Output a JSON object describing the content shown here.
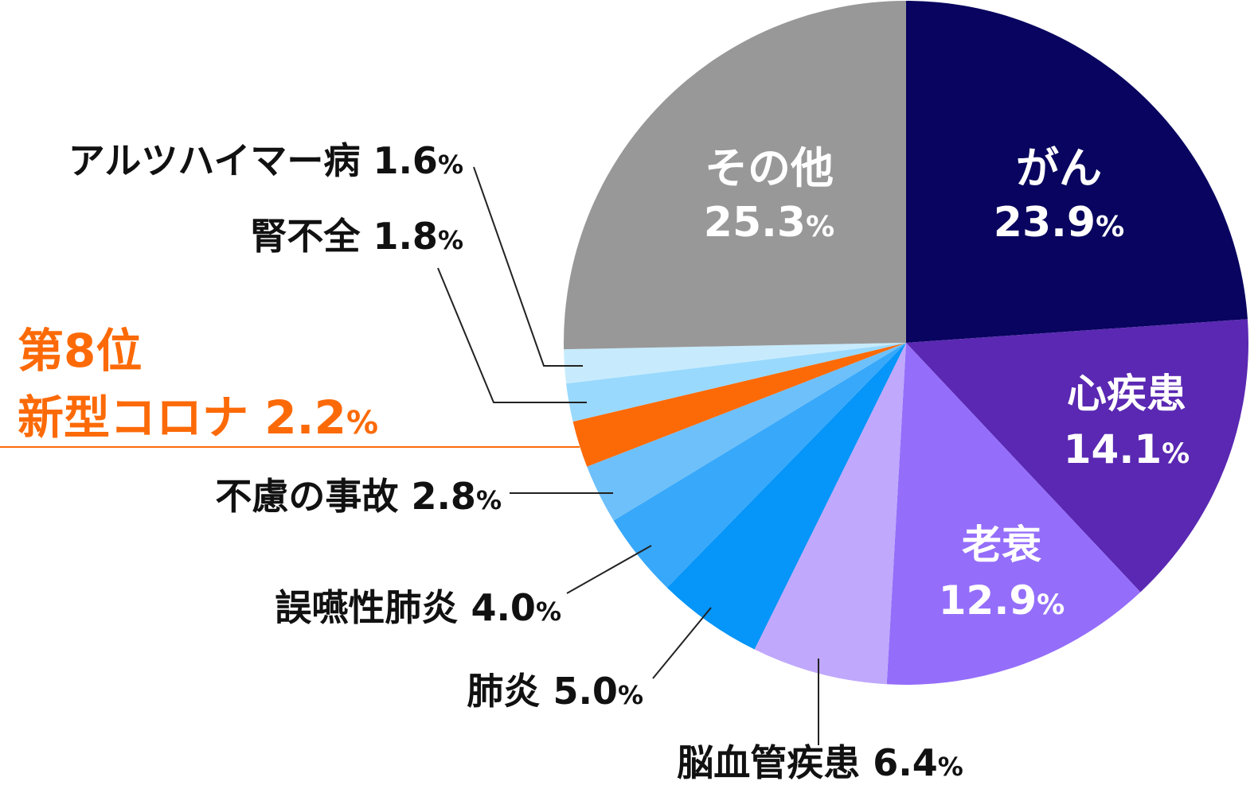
{
  "chart_data": {
    "type": "pie",
    "title": "",
    "start_angle_deg": 0,
    "direction": "clockwise",
    "slices": [
      {
        "key": "cancer",
        "name": "がん",
        "value": 23.9,
        "value_text": "23.9",
        "unit": "%",
        "color": "#08045f",
        "label_position": "inside",
        "label_color": "#ffffff"
      },
      {
        "key": "heart",
        "name": "心疾患",
        "value": 14.1,
        "value_text": "14.1",
        "unit": "%",
        "color": "#5a28b2",
        "label_position": "inside",
        "label_color": "#ffffff"
      },
      {
        "key": "senility",
        "name": "老衰",
        "value": 12.9,
        "value_text": "12.9",
        "unit": "%",
        "color": "#946efa",
        "label_position": "inside",
        "label_color": "#ffffff"
      },
      {
        "key": "cerebrovascular",
        "name": "脳血管疾患",
        "value": 6.4,
        "value_text": "6.4",
        "unit": "%",
        "color": "#c0a8fd",
        "label_position": "outside",
        "label_color": "#111111"
      },
      {
        "key": "pneumonia",
        "name": "肺炎",
        "value": 5.0,
        "value_text": "5.0",
        "unit": "%",
        "color": "#0695f8",
        "label_position": "outside",
        "label_color": "#111111"
      },
      {
        "key": "aspiration",
        "name": "誤嚥性肺炎",
        "value": 4.0,
        "value_text": "4.0",
        "unit": "%",
        "color": "#38a8fa",
        "label_position": "outside",
        "label_color": "#111111"
      },
      {
        "key": "accident",
        "name": "不慮の事故",
        "value": 2.8,
        "value_text": "2.8",
        "unit": "%",
        "color": "#6ec0fa",
        "label_position": "outside",
        "label_color": "#111111"
      },
      {
        "key": "covid",
        "name": "新型コロナ",
        "rank_text": "第8位",
        "value": 2.2,
        "value_text": "2.2",
        "unit": "%",
        "color": "#fc6a08",
        "label_position": "outside",
        "label_color": "#fc6a08",
        "highlight": true
      },
      {
        "key": "kidney",
        "name": "腎不全",
        "value": 1.8,
        "value_text": "1.8",
        "unit": "%",
        "color": "#99d9fd",
        "label_position": "outside",
        "label_color": "#111111"
      },
      {
        "key": "alzheimer",
        "name": "アルツハイマー病",
        "value": 1.6,
        "value_text": "1.6",
        "unit": "%",
        "color": "#c7ebfd",
        "label_position": "outside",
        "label_color": "#111111"
      },
      {
        "key": "other",
        "name": "その他",
        "value": 25.3,
        "value_text": "25.3",
        "unit": "%",
        "color": "#989898",
        "label_position": "inside",
        "label_color": "#ffffff"
      }
    ]
  }
}
